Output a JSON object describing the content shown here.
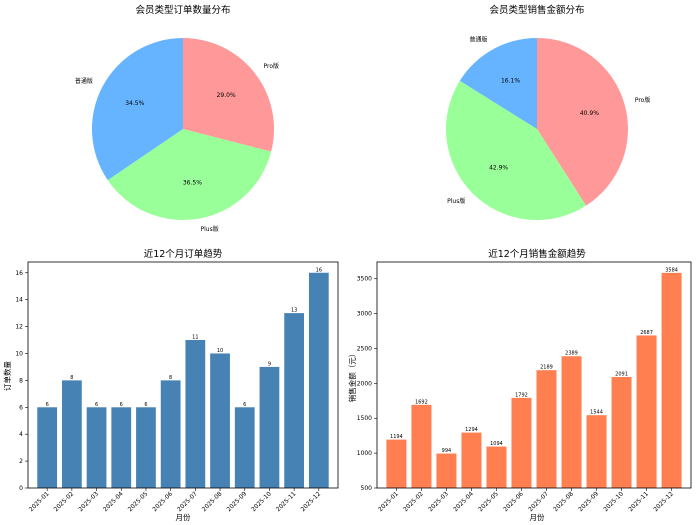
{
  "chart_data": [
    {
      "type": "pie",
      "title": "会员类型订单数量分布",
      "labels": [
        "Pro版",
        "Plus版",
        "普通版"
      ],
      "values": [
        29.0,
        36.5,
        34.5
      ],
      "value_labels": [
        "29.0%",
        "36.5%",
        "34.5%"
      ],
      "colors": [
        "#ff9999",
        "#99ff99",
        "#66b3ff"
      ]
    },
    {
      "type": "pie",
      "title": "会员类型销售金额分布",
      "labels": [
        "Pro版",
        "Plus版",
        "普通版"
      ],
      "values": [
        40.9,
        42.9,
        16.1
      ],
      "value_labels": [
        "40.9%",
        "42.9%",
        "16.1%"
      ],
      "colors": [
        "#ff9999",
        "#99ff99",
        "#66b3ff"
      ]
    },
    {
      "type": "bar",
      "title": "近12个月订单趋势",
      "xlabel": "月份",
      "ylabel": "订单数量",
      "categories": [
        "2025-01",
        "2025-02",
        "2025-03",
        "2025-04",
        "2025-05",
        "2025-06",
        "2025-07",
        "2025-08",
        "2025-09",
        "2025-10",
        "2025-11",
        "2025-12"
      ],
      "values": [
        6,
        8,
        6,
        6,
        6,
        8,
        11,
        10,
        6,
        9,
        13,
        16
      ],
      "ylim": [
        0,
        16.8
      ],
      "yticks": [
        0,
        2,
        4,
        6,
        8,
        10,
        12,
        14,
        16
      ],
      "color": "#4682b4"
    },
    {
      "type": "bar",
      "title": "近12个月销售金额趋势",
      "xlabel": "月份",
      "ylabel": "销售金额（元）",
      "categories": [
        "2025-01",
        "2025-02",
        "2025-03",
        "2025-04",
        "2025-05",
        "2025-06",
        "2025-07",
        "2025-08",
        "2025-09",
        "2025-10",
        "2025-11",
        "2025-12"
      ],
      "values": [
        1194,
        1692,
        994,
        1294,
        1094,
        1792,
        2189,
        2389,
        1544,
        2091,
        2687,
        3584
      ],
      "ylim": [
        500,
        3740
      ],
      "yticks": [
        500,
        1000,
        1500,
        2000,
        2500,
        3000,
        3500
      ],
      "color": "#ff7f50"
    }
  ]
}
